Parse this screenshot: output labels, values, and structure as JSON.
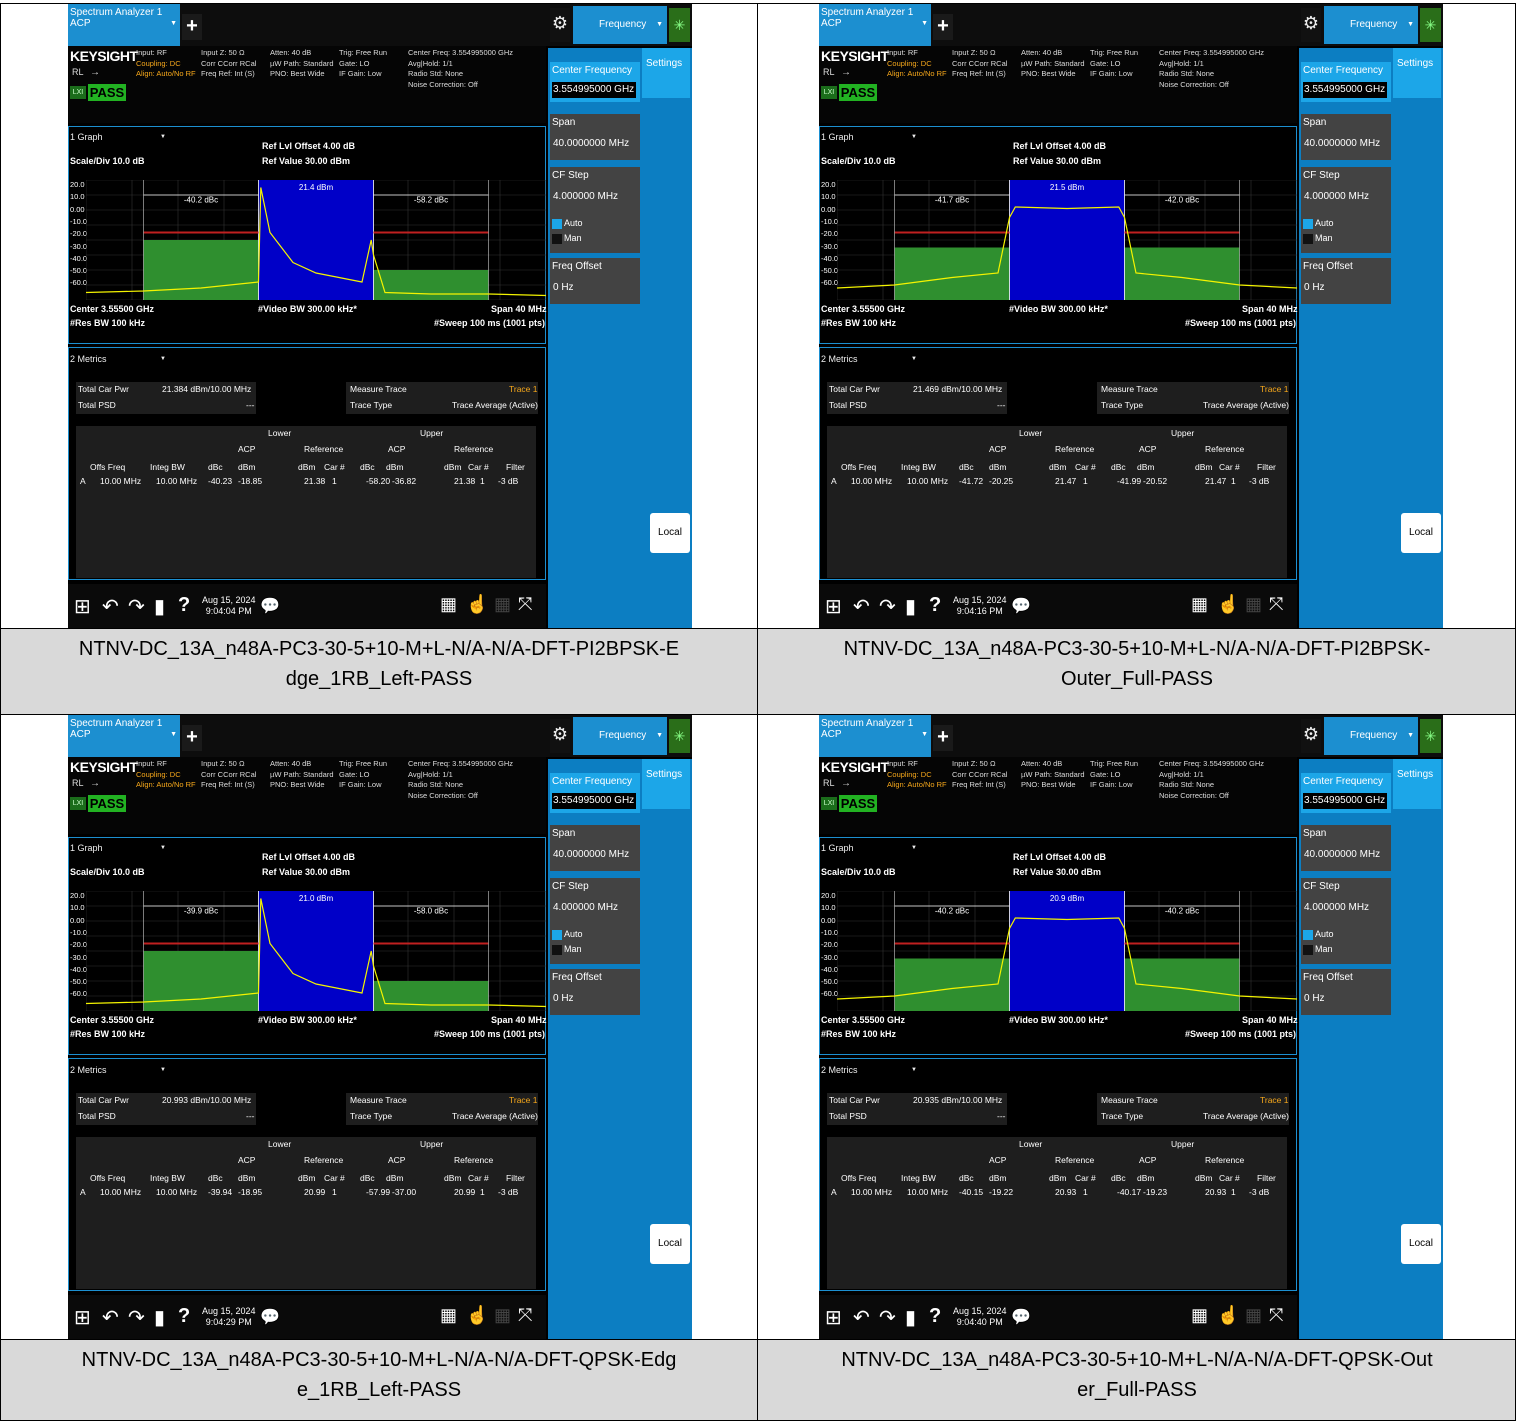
{
  "captions": [
    "NTNV-DC_13A_n48A-PC3-30-5+10-M+L-N/A-N/A-DFT-PI2BPSK-E\ndge_1RB_Left-PASS",
    "NTNV-DC_13A_n48A-PC3-30-5+10-M+L-N/A-N/A-DFT-PI2BPSK-\nOuter_Full-PASS",
    "NTNV-DC_13A_n48A-PC3-30-5+10-M+L-N/A-N/A-DFT-QPSK-Edg\ne_1RB_Left-PASS",
    "NTNV-DC_13A_n48A-PC3-30-5+10-M+L-N/A-N/A-DFT-QPSK-Out\ner_Full-PASS"
  ],
  "common": {
    "tab_title": "Spectrum Analyzer 1",
    "tab_mode": "ACP",
    "plus": "+",
    "freq_tab": "Frequency",
    "brand": "KEYSIGHT",
    "rl": "RL",
    "lxi": "LXI",
    "pass": "PASS",
    "hdr_c1": [
      "Input: RF",
      "Coupling: DC",
      "Align: Auto/No RF"
    ],
    "hdr_c2": [
      "Input Z: 50 Ω",
      "Corr CCorr RCal",
      "Freq Ref: Int (S)"
    ],
    "hdr_c3": [
      "Atten: 40 dB",
      "µW Path: Standard",
      "PNO: Best Wide"
    ],
    "hdr_c4": [
      "Trig: Free Run",
      "Gate: LO",
      "IF Gain: Low"
    ],
    "hdr_c5": [
      "Center Freq: 3.554995000 GHz",
      "Avg|Hold: 1/1",
      "Radio Std: None",
      "Noise Correction: Off"
    ],
    "graph_dd": "1 Graph",
    "ref_offset": "Ref Lvl Offset 4.00 dB",
    "ref_value": "Ref Value 30.00 dBm",
    "scale_div": "Scale/Div 10.0 dB",
    "y_ticks": [
      "20.0",
      "10.0",
      "0.00",
      "-10.0",
      "-20.0",
      "-30.0",
      "-40.0",
      "-50.0",
      "-60.0"
    ],
    "center": "Center 3.55500 GHz",
    "video_bw": "#Video BW 300.00 kHz*",
    "span_lbl": "Span 40 MHz",
    "res_bw": "#Res BW 100 kHz",
    "sweep": "#Sweep 100 ms (1001 pts)",
    "metrics_dd": "2 Metrics",
    "total_car_pwr": "Total Car Pwr",
    "total_psd": "Total PSD",
    "psd_val": "---",
    "measure_trace": "Measure Trace",
    "trace1": "Trace 1",
    "trace_type": "Trace Type",
    "trace_avg": "Trace Average (Active)",
    "lower": "Lower",
    "upper": "Upper",
    "acp": "ACP",
    "reference": "Reference",
    "col_heads": [
      "Offs Freq",
      "Integ BW",
      "dBc",
      "dBm",
      "dBm",
      "Car #",
      "dBc",
      "dBm",
      "dBm",
      "Car #",
      "Filter"
    ],
    "sb_center_label": "Center Frequency",
    "sb_center_val": "3.554995000 GHz",
    "sb_span_label": "Span",
    "sb_span_val": "40.0000000 MHz",
    "sb_cfstep_label": "CF Step",
    "sb_cfstep_val": "4.000000 MHz",
    "sb_auto": "Auto",
    "sb_man": "Man",
    "sb_freqoffset_label": "Freq Offset",
    "sb_freqoffset_val": "0 Hz",
    "settings": "Settings",
    "local": "Local",
    "date": "Aug 15, 2024",
    "colors": {
      "accent": "#1c8fd0",
      "pass": "#22b222",
      "trace": "#f4f400",
      "channel": "#0000c8",
      "limit": "#2f8f2f",
      "limitline": "#c02020"
    }
  },
  "screens": [
    {
      "time": "9:04:04 PM",
      "car_pwr": "21.384 dBm/10.00 MHz",
      "ch_dbm": "21.4 dBm",
      "lo_dbc": "-40.2 dBc",
      "up_dbc": "-58.2 dBc",
      "row": [
        "A",
        "10.00 MHz",
        "10.00 MHz",
        "-40.23",
        "-18.85",
        "21.38",
        "1",
        "-58.20",
        "-36.82",
        "21.38",
        "1",
        "-3 dB"
      ],
      "kind": "edge",
      "chart_data": {
        "type": "line",
        "ylim": [
          -60,
          20
        ],
        "x": [
          -20,
          -15,
          -10,
          -5,
          -4.8,
          -4,
          -3,
          -2,
          0,
          2,
          4,
          4.8,
          5,
          6,
          10,
          15,
          20
        ],
        "series": [
          {
            "name": "",
            "values": [
              -55,
              -54,
              -52,
              -48,
              15,
              -15,
              -25,
              -35,
              -42,
              -45,
              -48,
              -20,
              -30,
              -55,
              -56,
              -56,
              -57
            ]
          }
        ]
      }
    },
    {
      "time": "9:04:16 PM",
      "car_pwr": "21.469 dBm/10.00 MHz",
      "ch_dbm": "21.5 dBm",
      "lo_dbc": "-41.7 dBc",
      "up_dbc": "-42.0 dBc",
      "row": [
        "A",
        "10.00 MHz",
        "10.00 MHz",
        "-41.72",
        "-20.25",
        "21.47",
        "1",
        "-41.99",
        "-20.52",
        "21.47",
        "1",
        "-3 dB"
      ],
      "kind": "full",
      "chart_data": {
        "type": "line",
        "ylim": [
          -60,
          20
        ],
        "x": [
          -20,
          -15,
          -10,
          -6,
          -5,
          -4.5,
          0,
          4.5,
          5,
          6,
          10,
          15,
          20
        ],
        "series": [
          {
            "name": "",
            "values": [
              -52,
              -50,
              -45,
              -42,
              -5,
              2,
              1,
              2,
              -5,
              -42,
              -45,
              -50,
              -52
            ]
          }
        ]
      }
    },
    {
      "time": "9:04:29 PM",
      "car_pwr": "20.993 dBm/10.00 MHz",
      "ch_dbm": "21.0 dBm",
      "lo_dbc": "-39.9 dBc",
      "up_dbc": "-58.0 dBc",
      "row": [
        "A",
        "10.00 MHz",
        "10.00 MHz",
        "-39.94",
        "-18.95",
        "20.99",
        "1",
        "-57.99",
        "-37.00",
        "20.99",
        "1",
        "-3 dB"
      ],
      "kind": "edge",
      "chart_data": {
        "type": "line",
        "ylim": [
          -60,
          20
        ],
        "x": [
          -20,
          -15,
          -10,
          -5,
          -4.8,
          -4,
          -3,
          -2,
          0,
          2,
          4,
          4.8,
          5,
          6,
          10,
          15,
          20
        ],
        "series": [
          {
            "name": "",
            "values": [
              -55,
              -54,
              -52,
              -48,
              15,
              -15,
              -25,
              -35,
              -42,
              -45,
              -48,
              -20,
              -30,
              -55,
              -56,
              -56,
              -57
            ]
          }
        ]
      }
    },
    {
      "time": "9:04:40 PM",
      "car_pwr": "20.935 dBm/10.00 MHz",
      "ch_dbm": "20.9 dBm",
      "lo_dbc": "-40.2 dBc",
      "up_dbc": "-40.2 dBc",
      "row": [
        "A",
        "10.00 MHz",
        "10.00 MHz",
        "-40.15",
        "-19.22",
        "20.93",
        "1",
        "-40.17",
        "-19.23",
        "20.93",
        "1",
        "-3 dB"
      ],
      "kind": "full",
      "chart_data": {
        "type": "line",
        "ylim": [
          -60,
          20
        ],
        "x": [
          -20,
          -15,
          -10,
          -6,
          -5,
          -4.5,
          0,
          4.5,
          5,
          6,
          10,
          15,
          20
        ],
        "series": [
          {
            "name": "",
            "values": [
              -52,
              -50,
              -45,
              -42,
              -5,
              2,
              1,
              2,
              -5,
              -42,
              -45,
              -50,
              -52
            ]
          }
        ]
      }
    }
  ]
}
